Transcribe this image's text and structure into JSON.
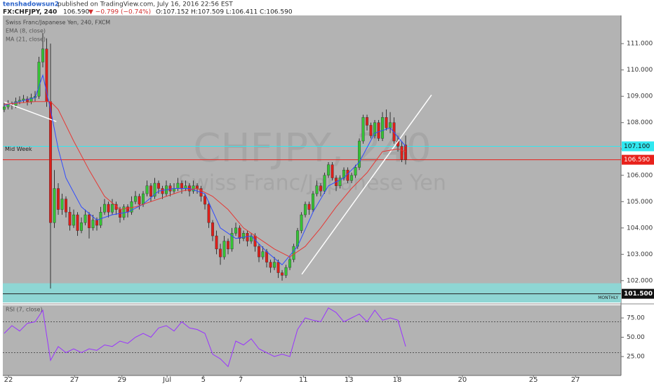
{
  "header": {
    "user": "tenshadowsun2",
    "published": "published on TradingView.com, July 16, 2016 22:56 EST",
    "symbol": "FX:CHFJPY, 240",
    "last": "106.590",
    "change": "▼ −0.799 (−0.74%)",
    "ohlc": "O:107.152 H:107.509 L:106.411 C:106.590"
  },
  "chart_data": [
    {
      "type": "candlestick",
      "title": "Swiss Franc/Japanese Yen, 240, FXCM",
      "watermark": "CHFJPY, 240",
      "watermark_sub": "Swiss Franc/Japanese Yen",
      "up_color": "#35c235",
      "down_color": "#dd1f1a",
      "open": [
        108.5,
        108.6,
        108.7,
        108.65,
        108.8,
        108.85,
        108.9,
        108.8,
        108.95,
        109.0,
        110.3,
        110.8,
        108.8,
        104.2,
        105.5,
        104.7,
        105.1,
        104.6,
        104.1,
        104.5,
        103.9,
        104.2,
        104.5,
        104.0,
        104.3,
        104.1,
        104.6,
        104.9,
        104.6,
        104.9,
        104.7,
        104.4,
        104.8,
        104.6,
        105.0,
        105.2,
        104.9,
        105.3,
        105.6,
        105.2,
        105.7,
        105.5,
        105.3,
        105.6,
        105.4,
        105.5,
        105.7,
        105.5,
        105.6,
        105.4,
        105.6,
        105.5,
        105.2,
        104.9,
        104.2,
        103.7,
        103.2,
        102.9,
        103.5,
        103.2,
        103.8,
        104.0,
        103.6,
        103.8,
        103.5,
        103.7,
        103.3,
        102.9,
        103.1,
        102.7,
        102.5,
        102.7,
        102.3,
        102.2,
        102.5,
        102.8,
        103.3,
        103.9,
        104.5,
        104.9,
        104.7,
        105.3,
        105.6,
        105.4,
        106.0,
        106.4,
        105.9,
        105.6,
        105.9,
        106.2,
        105.8,
        106.0,
        106.3,
        107.3,
        108.2,
        107.9,
        107.5,
        108.0,
        107.4,
        108.2,
        107.8,
        108.0,
        107.3,
        107.1,
        107.152
      ],
      "high": [
        108.75,
        108.85,
        108.8,
        108.95,
        109.0,
        109.05,
        109.0,
        109.1,
        109.2,
        110.5,
        111.4,
        111.2,
        111.0,
        106.2,
        105.7,
        105.3,
        105.2,
        104.8,
        104.7,
        104.6,
        104.4,
        104.7,
        104.6,
        104.5,
        104.4,
        104.8,
        105.1,
        105.0,
        105.1,
        105.0,
        104.8,
        104.9,
        104.9,
        105.2,
        105.4,
        105.3,
        105.4,
        105.8,
        105.7,
        105.9,
        105.8,
        105.6,
        105.8,
        105.7,
        105.7,
        105.9,
        105.8,
        105.8,
        105.7,
        105.8,
        105.7,
        105.6,
        105.3,
        105.0,
        104.3,
        103.9,
        103.4,
        103.7,
        103.6,
        104.0,
        104.2,
        104.1,
        103.9,
        103.9,
        103.8,
        103.8,
        103.4,
        103.3,
        103.2,
        102.8,
        102.9,
        102.8,
        102.4,
        102.6,
        102.9,
        103.4,
        104.0,
        104.6,
        105.0,
        105.0,
        105.4,
        105.8,
        105.7,
        106.1,
        106.5,
        106.5,
        106.0,
        106.0,
        106.3,
        106.3,
        106.1,
        106.4,
        107.4,
        108.3,
        108.3,
        108.0,
        108.1,
        108.1,
        108.4,
        108.5,
        108.4,
        108.2,
        107.5,
        107.3,
        107.509
      ],
      "low": [
        108.4,
        108.5,
        108.5,
        108.55,
        108.7,
        108.75,
        108.65,
        108.7,
        108.8,
        108.9,
        110.1,
        108.6,
        101.7,
        104.0,
        104.5,
        104.5,
        104.4,
        103.9,
        104.0,
        103.7,
        103.8,
        104.1,
        103.6,
        103.9,
        103.9,
        104.0,
        104.5,
        104.4,
        104.5,
        104.5,
        104.2,
        104.3,
        104.4,
        104.5,
        104.9,
        104.7,
        104.8,
        105.2,
        105.0,
        105.1,
        105.3,
        105.1,
        105.2,
        105.2,
        105.3,
        105.4,
        105.3,
        105.4,
        105.2,
        105.3,
        105.3,
        105.0,
        104.7,
        104.0,
        103.5,
        103.0,
        102.6,
        102.8,
        103.0,
        103.1,
        103.7,
        103.4,
        103.5,
        103.3,
        103.4,
        103.1,
        102.7,
        102.8,
        102.5,
        102.3,
        102.4,
        102.1,
        102.0,
        102.1,
        102.4,
        102.7,
        103.2,
        103.8,
        104.4,
        104.5,
        104.6,
        105.2,
        105.2,
        105.3,
        105.9,
        105.8,
        105.4,
        105.5,
        105.8,
        105.7,
        105.7,
        105.9,
        106.2,
        107.2,
        107.7,
        107.4,
        107.4,
        107.3,
        107.3,
        107.7,
        107.6,
        107.2,
        106.9,
        106.5,
        106.411
      ],
      "close": [
        108.6,
        108.7,
        108.65,
        108.8,
        108.85,
        108.9,
        108.8,
        108.95,
        109.0,
        110.3,
        110.8,
        108.8,
        104.2,
        105.5,
        104.7,
        105.1,
        104.6,
        104.1,
        104.5,
        103.9,
        104.2,
        104.5,
        104.0,
        104.3,
        104.1,
        104.6,
        104.9,
        104.6,
        104.9,
        104.7,
        104.4,
        104.8,
        104.6,
        105.0,
        105.2,
        104.9,
        105.3,
        105.6,
        105.2,
        105.7,
        105.5,
        105.3,
        105.6,
        105.4,
        105.5,
        105.7,
        105.5,
        105.6,
        105.4,
        105.6,
        105.5,
        105.2,
        104.9,
        104.2,
        103.7,
        103.2,
        102.9,
        103.5,
        103.2,
        103.8,
        104.0,
        103.6,
        103.8,
        103.5,
        103.7,
        103.3,
        102.9,
        103.1,
        102.7,
        102.5,
        102.7,
        102.3,
        102.2,
        102.5,
        102.8,
        103.3,
        103.9,
        104.5,
        104.9,
        104.7,
        105.3,
        105.6,
        105.4,
        106.0,
        106.4,
        105.9,
        105.6,
        105.9,
        106.2,
        105.8,
        106.0,
        106.3,
        107.3,
        108.2,
        107.9,
        107.5,
        108.0,
        107.4,
        108.2,
        107.8,
        108.0,
        107.3,
        107.1,
        106.6,
        106.59
      ],
      "series": [
        {
          "name": "EMA (8, close)",
          "color": "#2f4bff",
          "x": [
            0,
            4,
            8,
            10,
            12,
            14,
            16,
            20,
            24,
            28,
            32,
            36,
            40,
            44,
            48,
            52,
            56,
            60,
            64,
            68,
            72,
            76,
            80,
            84,
            88,
            92,
            96,
            100,
            104
          ],
          "values": [
            108.65,
            108.8,
            108.95,
            109.8,
            108.5,
            107.0,
            105.9,
            104.8,
            104.3,
            104.5,
            104.6,
            104.9,
            105.4,
            105.5,
            105.5,
            105.3,
            104.0,
            103.6,
            103.7,
            103.1,
            102.6,
            103.3,
            104.6,
            105.6,
            105.9,
            106.5,
            107.6,
            107.8,
            107.1
          ]
        },
        {
          "name": "MA (21, close)",
          "color": "#e53935",
          "x": [
            0,
            4,
            8,
            12,
            14,
            18,
            22,
            26,
            30,
            34,
            38,
            42,
            46,
            50,
            54,
            58,
            62,
            66,
            70,
            74,
            78,
            82,
            86,
            90,
            94,
            98,
            102,
            104
          ],
          "values": [
            108.7,
            108.75,
            108.8,
            108.8,
            108.5,
            107.3,
            106.2,
            105.2,
            104.7,
            104.8,
            105.0,
            105.2,
            105.4,
            105.5,
            105.2,
            104.7,
            104.0,
            103.6,
            103.2,
            102.9,
            103.3,
            104.0,
            104.8,
            105.5,
            106.1,
            106.9,
            107.0,
            106.9
          ]
        }
      ],
      "hlines": [
        {
          "value": 107.1,
          "label": "107.100",
          "color": "#31e8f0",
          "text": "Mid Week"
        },
        {
          "value": 106.59,
          "label": "106.590",
          "color": "#e8211b"
        }
      ],
      "zone": {
        "from": 101.17,
        "to": 101.9,
        "value": 101.5,
        "label": "101.500",
        "text": "MONTHLY",
        "color": "#8ed6d4"
      },
      "trendlines": [
        {
          "x": [
            77.1,
            110.7
          ],
          "y": [
            102.24,
            109.05
          ]
        },
        {
          "x": [
            0,
            13.5
          ],
          "y": [
            108.78,
            108.04
          ]
        }
      ],
      "xlim": [
        -0.36,
        159.8
      ],
      "ylim": [
        101.17,
        112.07
      ],
      "xticks": [
        {
          "value": 1.1,
          "label": "22"
        },
        {
          "value": 18.2,
          "label": "27"
        },
        {
          "value": 30.5,
          "label": "29"
        },
        {
          "value": 42.2,
          "label": "Jul"
        },
        {
          "value": 51.6,
          "label": "5"
        },
        {
          "value": 61.3,
          "label": "7"
        },
        {
          "value": 77.5,
          "label": "11"
        },
        {
          "value": 89.3,
          "label": "13"
        },
        {
          "value": 101.8,
          "label": "18"
        },
        {
          "value": 118.7,
          "label": "20"
        },
        {
          "value": 137.1,
          "label": "25"
        },
        {
          "value": 148.0,
          "label": "27"
        }
      ],
      "yticks": [
        {
          "value": 111,
          "label": "111.000"
        },
        {
          "value": 110,
          "label": "110.000"
        },
        {
          "value": 109,
          "label": "109.000"
        },
        {
          "value": 108,
          "label": "108.000"
        },
        {
          "value": 107,
          "label": "107.000"
        },
        {
          "value": 106,
          "label": "106.000"
        },
        {
          "value": 105,
          "label": "105.000"
        },
        {
          "value": 104,
          "label": "104.000"
        },
        {
          "value": 103,
          "label": "103.000"
        },
        {
          "value": 102,
          "label": "102.000"
        }
      ]
    },
    {
      "type": "line",
      "series": [
        {
          "name": "RSI (7, close)",
          "color": "#9933ff",
          "x": [
            0,
            2,
            4,
            6,
            8,
            10,
            12,
            14,
            16,
            18,
            20,
            22,
            24,
            26,
            28,
            30,
            32,
            34,
            36,
            38,
            40,
            42,
            44,
            46,
            48,
            50,
            52,
            54,
            56,
            58,
            60,
            62,
            64,
            66,
            68,
            70,
            72,
            74,
            76,
            78,
            80,
            82,
            84,
            86,
            88,
            90,
            92,
            94,
            96,
            98,
            100,
            102,
            104
          ],
          "values": [
            55,
            65,
            58,
            68,
            70,
            85,
            20,
            38,
            30,
            35,
            30,
            35,
            33,
            40,
            38,
            45,
            42,
            50,
            55,
            50,
            62,
            65,
            58,
            70,
            62,
            60,
            55,
            28,
            22,
            12,
            45,
            40,
            48,
            35,
            30,
            25,
            28,
            25,
            60,
            75,
            72,
            70,
            88,
            82,
            70,
            75,
            80,
            70,
            85,
            72,
            75,
            72,
            38
          ]
        }
      ],
      "bands": [
        70,
        30
      ],
      "xlim": [
        -0.36,
        159.8
      ],
      "ylim": [
        0.5,
        91.4
      ],
      "yticks": [
        {
          "value": 75,
          "label": "75.00"
        },
        {
          "value": 50,
          "label": "50.00"
        },
        {
          "value": 25,
          "label": "25.00"
        }
      ]
    }
  ]
}
